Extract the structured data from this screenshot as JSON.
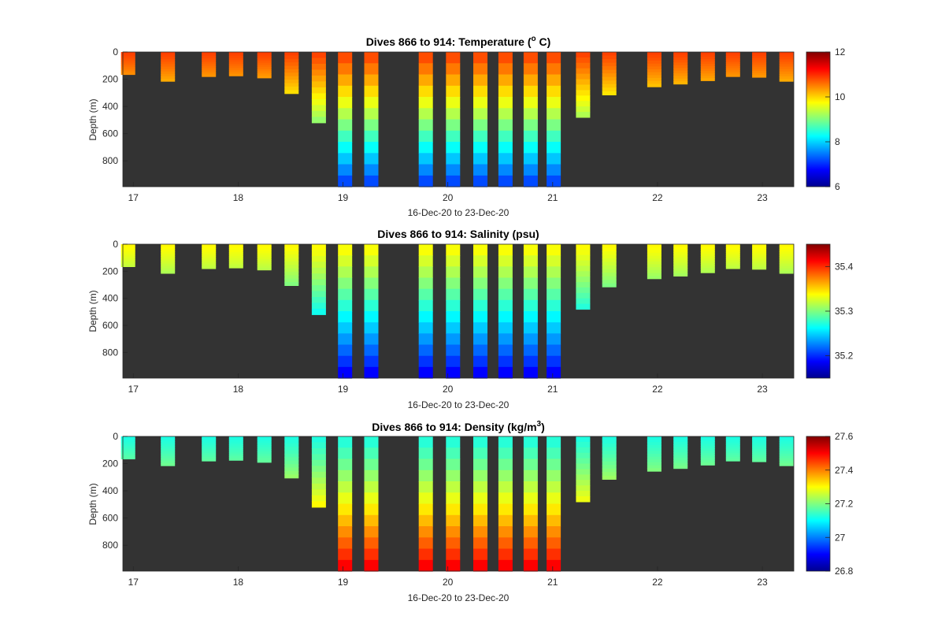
{
  "chart_data": [
    {
      "type": "heatmap",
      "title": "Dives 866 to 914: Temperature (",
      "title_sup": "o",
      "title_suffix": " C)",
      "xlabel": "16-Dec-20 to 23-Dec-20",
      "ylabel": "Depth (m)",
      "x_ticks": [
        "17",
        "18",
        "19",
        "20",
        "21",
        "22",
        "23"
      ],
      "x_tick_values": [
        17,
        18,
        19,
        20,
        21,
        22,
        23
      ],
      "xlim": [
        16.9,
        23.3
      ],
      "y_ticks": [
        "0",
        "200",
        "400",
        "600",
        "800"
      ],
      "y_tick_values": [
        0,
        200,
        400,
        600,
        800
      ],
      "ylim": [
        990,
        0
      ],
      "colorbar_ticks": [
        "6",
        "8",
        "10",
        "12"
      ],
      "colorbar_tick_values": [
        6,
        8,
        10,
        12
      ],
      "clim": [
        6,
        12
      ],
      "colormap": "jet",
      "background": "#333333",
      "surface_value": 10.9,
      "deep_value": 7.0,
      "profiles": [
        {
          "time": 16.95,
          "max_depth": 165
        },
        {
          "time": 17.33,
          "max_depth": 215
        },
        {
          "time": 17.72,
          "max_depth": 180
        },
        {
          "time": 17.98,
          "max_depth": 175
        },
        {
          "time": 18.25,
          "max_depth": 190
        },
        {
          "time": 18.51,
          "max_depth": 305
        },
        {
          "time": 18.77,
          "max_depth": 520
        },
        {
          "time": 19.02,
          "max_depth": 990
        },
        {
          "time": 19.27,
          "max_depth": 990
        },
        {
          "time": 19.79,
          "max_depth": 990
        },
        {
          "time": 20.05,
          "max_depth": 990
        },
        {
          "time": 20.31,
          "max_depth": 990
        },
        {
          "time": 20.55,
          "max_depth": 990
        },
        {
          "time": 20.79,
          "max_depth": 990
        },
        {
          "time": 21.01,
          "max_depth": 990
        },
        {
          "time": 21.29,
          "max_depth": 480
        },
        {
          "time": 21.54,
          "max_depth": 315
        },
        {
          "time": 21.97,
          "max_depth": 255
        },
        {
          "time": 22.22,
          "max_depth": 235
        },
        {
          "time": 22.48,
          "max_depth": 210
        },
        {
          "time": 22.72,
          "max_depth": 180
        },
        {
          "time": 22.97,
          "max_depth": 185
        },
        {
          "time": 23.23,
          "max_depth": 215
        }
      ]
    },
    {
      "type": "heatmap",
      "title": "Dives 866 to 914: Salinity (psu)",
      "title_sup": "",
      "title_suffix": "",
      "xlabel": "16-Dec-20 to 23-Dec-20",
      "ylabel": "Depth (m)",
      "x_ticks": [
        "17",
        "18",
        "19",
        "20",
        "21",
        "22",
        "23"
      ],
      "x_tick_values": [
        17,
        18,
        19,
        20,
        21,
        22,
        23
      ],
      "xlim": [
        16.9,
        23.3
      ],
      "y_ticks": [
        "0",
        "200",
        "400",
        "600",
        "800"
      ],
      "y_tick_values": [
        0,
        200,
        400,
        600,
        800
      ],
      "ylim": [
        990,
        0
      ],
      "colorbar_ticks": [
        "35.2",
        "35.3",
        "35.4"
      ],
      "colorbar_tick_values": [
        35.2,
        35.3,
        35.4
      ],
      "clim": [
        35.15,
        35.45
      ],
      "colormap": "jet",
      "background": "#333333",
      "surface_value": 35.34,
      "deep_value": 35.18
    },
    {
      "type": "heatmap",
      "title": "Dives 866 to 914: Density (kg/m",
      "title_sup": "3",
      "title_suffix": ")",
      "xlabel": "16-Dec-20 to 23-Dec-20",
      "ylabel": "Depth (m)",
      "x_ticks": [
        "17",
        "18",
        "19",
        "20",
        "21",
        "22",
        "23"
      ],
      "x_tick_values": [
        17,
        18,
        19,
        20,
        21,
        22,
        23
      ],
      "xlim": [
        16.9,
        23.3
      ],
      "y_ticks": [
        "0",
        "200",
        "400",
        "600",
        "800"
      ],
      "y_tick_values": [
        0,
        200,
        400,
        600,
        800
      ],
      "ylim": [
        990,
        0
      ],
      "colorbar_ticks": [
        "26.8",
        "27",
        "27.2",
        "27.4",
        "27.6"
      ],
      "colorbar_tick_values": [
        26.8,
        27.0,
        27.2,
        27.4,
        27.6
      ],
      "clim": [
        26.8,
        27.6
      ],
      "colormap": "jet",
      "background": "#333333",
      "surface_value": 27.12,
      "deep_value": 27.52
    }
  ]
}
